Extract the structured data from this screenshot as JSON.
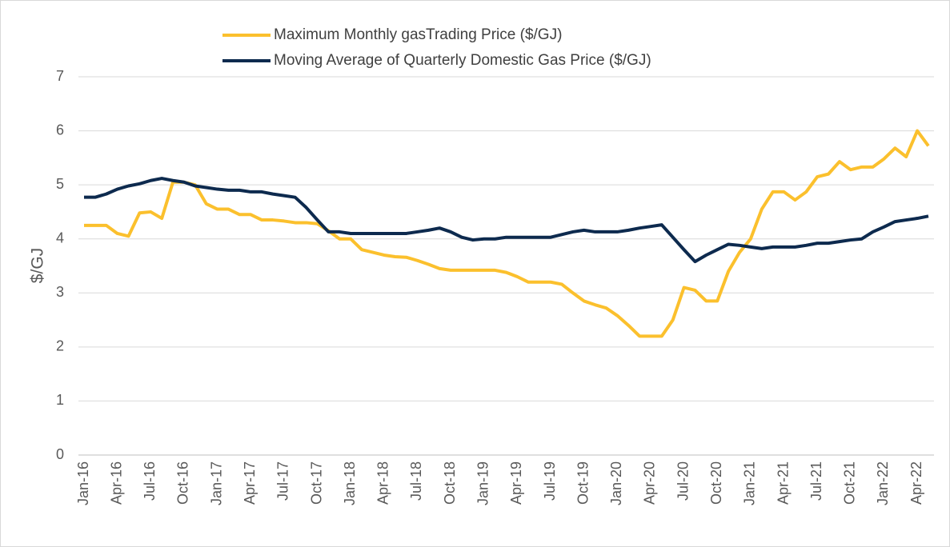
{
  "chart_data": {
    "type": "line",
    "y_label": "$/GJ",
    "categories": [
      "Jan-16",
      null,
      null,
      "Apr-16",
      null,
      null,
      "Jul-16",
      null,
      null,
      "Oct-16",
      null,
      null,
      "Jan-17",
      null,
      null,
      "Apr-17",
      null,
      null,
      "Jul-17",
      null,
      null,
      "Oct-17",
      null,
      null,
      "Jan-18",
      null,
      null,
      "Apr-18",
      null,
      null,
      "Jul-18",
      null,
      null,
      "Oct-18",
      null,
      null,
      "Jan-19",
      null,
      null,
      "Apr-19",
      null,
      null,
      "Jul-19",
      null,
      null,
      "Oct-19",
      null,
      null,
      "Jan-20",
      null,
      null,
      "Apr-20",
      null,
      null,
      "Jul-20",
      null,
      null,
      "Oct-20",
      null,
      null,
      "Jan-21",
      null,
      null,
      "Apr-21",
      null,
      null,
      "Jul-21",
      null,
      null,
      "Oct-21",
      null,
      null,
      "Jan-22",
      null,
      null,
      "Apr-22",
      null
    ],
    "series": [
      {
        "name": "Maximum Monthly gasTrading Price ($/GJ)",
        "color": "#fbc02d",
        "values": [
          4.25,
          4.25,
          4.25,
          4.1,
          4.05,
          4.48,
          4.5,
          4.38,
          5.05,
          5.05,
          5.0,
          4.65,
          4.55,
          4.55,
          4.45,
          4.45,
          4.35,
          4.35,
          4.33,
          4.3,
          4.3,
          4.28,
          4.15,
          4.0,
          4.0,
          3.8,
          3.75,
          3.7,
          3.67,
          3.66,
          3.6,
          3.53,
          3.45,
          3.42,
          3.42,
          3.42,
          3.42,
          3.42,
          3.38,
          3.3,
          3.2,
          3.2,
          3.2,
          3.16,
          3.0,
          2.85,
          2.78,
          2.72,
          2.58,
          2.4,
          2.2,
          2.2,
          2.2,
          2.5,
          3.1,
          3.05,
          2.85,
          2.85,
          3.4,
          3.75,
          4.0,
          4.55,
          4.87,
          4.87,
          4.72,
          4.87,
          5.15,
          5.2,
          5.43,
          5.28,
          5.33,
          5.33,
          5.48,
          5.68,
          5.52,
          6.0,
          5.72
        ]
      },
      {
        "name": "Moving Average of Quarterly Domestic Gas Price ($/GJ)",
        "color": "#0d2a4e",
        "values": [
          4.77,
          4.77,
          4.83,
          4.92,
          4.98,
          5.02,
          5.08,
          5.12,
          5.08,
          5.05,
          4.98,
          4.95,
          4.92,
          4.9,
          4.9,
          4.87,
          4.87,
          4.83,
          4.8,
          4.77,
          4.58,
          4.35,
          4.13,
          4.13,
          4.1,
          4.1,
          4.1,
          4.1,
          4.1,
          4.1,
          4.13,
          4.16,
          4.2,
          4.13,
          4.03,
          3.98,
          4.0,
          4.0,
          4.03,
          4.03,
          4.03,
          4.03,
          4.03,
          4.08,
          4.13,
          4.16,
          4.13,
          4.13,
          4.13,
          4.16,
          4.2,
          4.23,
          4.26,
          4.03,
          3.8,
          3.58,
          3.7,
          3.8,
          3.9,
          3.88,
          3.85,
          3.82,
          3.85,
          3.85,
          3.85,
          3.88,
          3.92,
          3.92,
          3.95,
          3.98,
          4.0,
          4.13,
          4.22,
          4.32,
          4.35,
          4.38,
          4.42
        ]
      }
    ],
    "ylim": [
      0,
      7
    ],
    "yticks": [
      0,
      1,
      2,
      3,
      4,
      5,
      6,
      7
    ],
    "grid": true,
    "legend": "top"
  }
}
